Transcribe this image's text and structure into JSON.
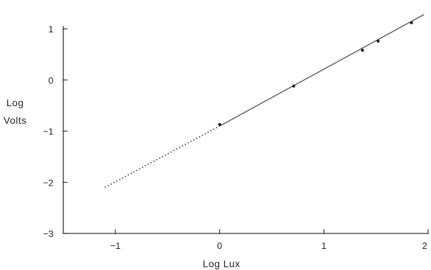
{
  "chart_data": {
    "type": "scatter",
    "xlabel": "Log Lux",
    "ylabel_lines": [
      "Log",
      "Volts"
    ],
    "xlim": [
      -1.5,
      2.0
    ],
    "ylim": [
      -3,
      1
    ],
    "x_ticks": [
      -1,
      0,
      1,
      2
    ],
    "x_tick_labels": [
      "−1",
      "0",
      "1",
      "2"
    ],
    "y_ticks": [
      1,
      0,
      -1,
      -2,
      -3
    ],
    "y_tick_labels": [
      "1",
      "0",
      "−1",
      "−2",
      "−3"
    ],
    "grid": false,
    "series": [
      {
        "kind": "points",
        "x": [
          0.0,
          0.71,
          1.37,
          1.52,
          1.84
        ],
        "y": [
          -0.87,
          -0.12,
          0.58,
          0.76,
          1.12
        ]
      },
      {
        "kind": "fit-line-solid",
        "x": [
          0.0,
          1.96
        ],
        "y": [
          -0.9,
          1.28
        ]
      },
      {
        "kind": "fit-line-dotted",
        "x": [
          -1.1,
          0.0
        ],
        "y": [
          -2.1,
          -0.9
        ]
      }
    ]
  }
}
